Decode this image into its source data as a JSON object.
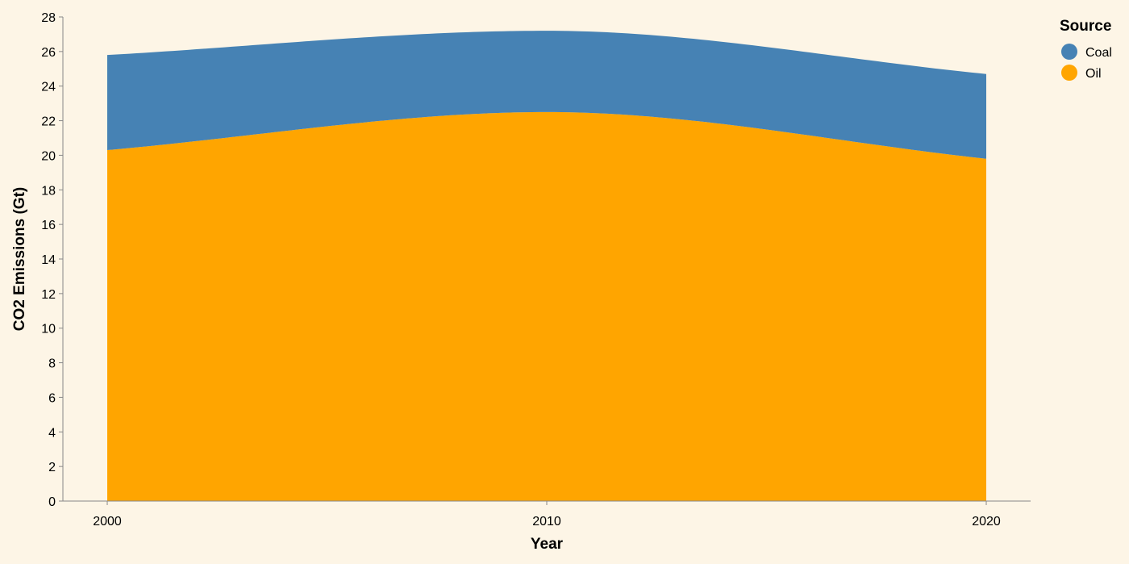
{
  "chart_data": {
    "type": "area",
    "stacked": true,
    "xlabel": "Year",
    "ylabel": "CO2 Emissions (Gt)",
    "x": [
      2000,
      2010,
      2020
    ],
    "ylim": [
      0,
      28
    ],
    "y_ticks": [
      0,
      2,
      4,
      6,
      8,
      10,
      12,
      14,
      16,
      18,
      20,
      22,
      24,
      26,
      28
    ],
    "x_ticks": [
      2000,
      2010,
      2020
    ],
    "grid": false,
    "legend": {
      "title": "Source",
      "placement": "top-right"
    },
    "series": [
      {
        "name": "Oil",
        "color": "#ffa500",
        "values": [
          20.3,
          22.5,
          19.8
        ]
      },
      {
        "name": "Coal",
        "color": "#4682b4",
        "values": [
          5.5,
          4.7,
          4.9
        ]
      }
    ],
    "legend_order": [
      "Coal",
      "Oil"
    ],
    "interpolation": "monotone"
  }
}
